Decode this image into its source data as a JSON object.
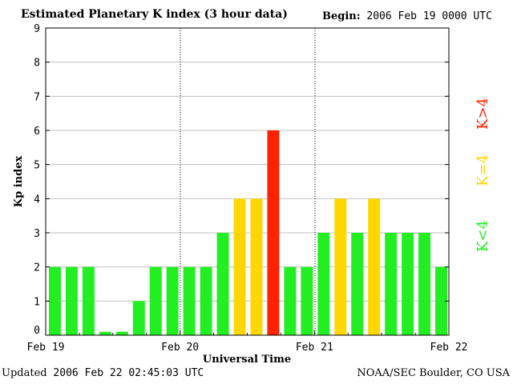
{
  "header": {
    "title": "Estimated Planetary K index (3 hour data)",
    "begin_label": "Begin:",
    "begin_value": "2006 Feb 19 0000 UTC"
  },
  "footer": {
    "updated_label": "Updated",
    "updated_value": "2006 Feb 22 02:45:03 UTC",
    "source": "NOAA/SEC Boulder, CO USA"
  },
  "colors": {
    "low": "#22ee22",
    "storm_threshold": "#ffd700",
    "high": "#ff2200",
    "grid": "#c0c0c0"
  },
  "legend": [
    {
      "label": "K<4",
      "color": "#22ee22"
    },
    {
      "label": "K=4",
      "color": "#ffd700"
    },
    {
      "label": "K>4",
      "color": "#ff2200"
    }
  ],
  "chart_data": {
    "type": "bar",
    "title": "Estimated Planetary K index (3 hour data)",
    "xlabel": "Universal Time",
    "ylabel": "Kp index",
    "ylim": [
      0,
      9
    ],
    "yticks": [
      0,
      1,
      2,
      3,
      4,
      5,
      6,
      7,
      8,
      9
    ],
    "grid": true,
    "x_tick_labels": [
      "Feb 19",
      "Feb 20",
      "Feb 21",
      "Feb 22"
    ],
    "interval_hours": 3,
    "values": [
      2,
      2,
      2,
      0.1,
      0.1,
      1,
      2,
      2,
      2,
      2,
      3,
      4,
      4,
      6,
      2,
      2,
      3,
      4,
      3,
      4,
      3,
      3,
      3,
      2
    ]
  }
}
